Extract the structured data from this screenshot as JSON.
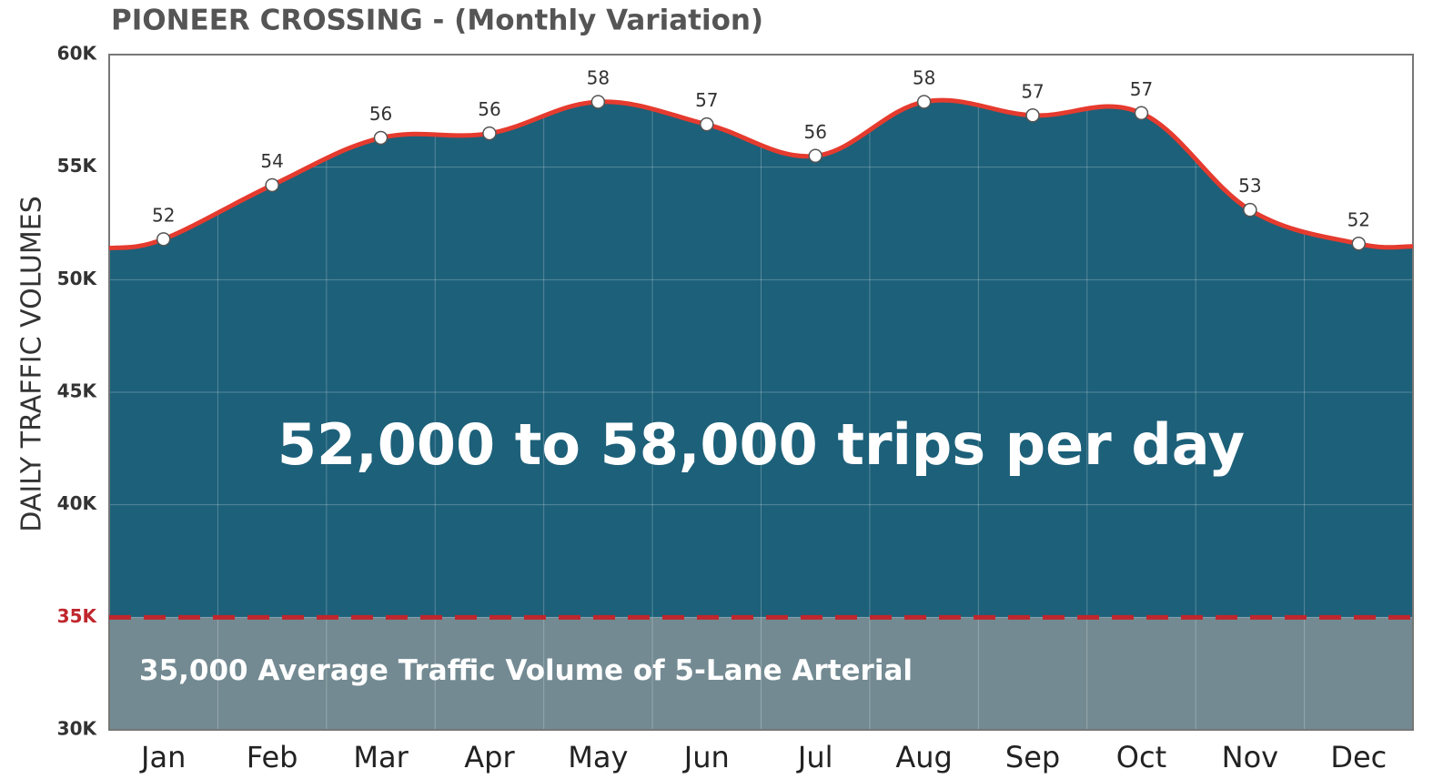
{
  "chart_data": {
    "type": "area",
    "title": "PIONEER CROSSING - (Monthly Variation)",
    "y_label": "DAILY TRAFFIC VOLUMES",
    "annotation": "52,000 to 58,000 trips per day",
    "categories": [
      "Jan",
      "Feb",
      "Mar",
      "Apr",
      "May",
      "Jun",
      "Jul",
      "Aug",
      "Sep",
      "Oct",
      "Nov",
      "Dec"
    ],
    "values": [
      51.8,
      54.2,
      56.3,
      56.5,
      57.9,
      56.9,
      55.5,
      57.9,
      57.3,
      57.4,
      53.1,
      51.6
    ],
    "value_labels": [
      "52",
      "54",
      "56",
      "56",
      "58",
      "57",
      "56",
      "58",
      "57",
      "57",
      "53",
      "52"
    ],
    "color": "#e53b2f",
    "area_color": "#1d6079",
    "ylim": [
      30,
      60
    ],
    "yticks": [
      {
        "value": 30,
        "label": "30K"
      },
      {
        "value": 35,
        "label": "35K"
      },
      {
        "value": 40,
        "label": "40K"
      },
      {
        "value": 45,
        "label": "45K"
      },
      {
        "value": 50,
        "label": "50K"
      },
      {
        "value": 55,
        "label": "55K"
      },
      {
        "value": 60,
        "label": "60K"
      }
    ],
    "grid": true,
    "reference_line": {
      "value": 35,
      "label": "35,000 Average Traffic Volume of 5-Lane Arterial",
      "color": "#c0262d",
      "fill": "#738a92"
    }
  }
}
